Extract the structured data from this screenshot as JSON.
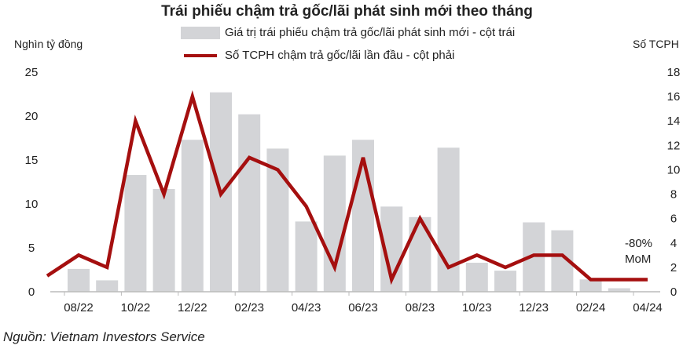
{
  "chart_data": {
    "type": "bar+line",
    "title": "Trái phiếu chậm trả gốc/lãi phát sinh mới theo tháng",
    "ylabel": "Nghìn tỷ đồng",
    "y2label": "Số TCPH",
    "ylim": [
      0,
      25
    ],
    "y2lim": [
      0,
      18
    ],
    "yticks": [
      0,
      5,
      10,
      15,
      20,
      25
    ],
    "y2ticks": [
      0,
      2,
      4,
      6,
      8,
      10,
      12,
      14,
      16,
      18
    ],
    "categories": [
      "08/22",
      "09/22",
      "10/22",
      "11/22",
      "12/22",
      "01/23",
      "02/23",
      "03/23",
      "04/23",
      "05/23",
      "06/23",
      "07/23",
      "08/23",
      "09/23",
      "10/23",
      "11/23",
      "12/23",
      "01/24",
      "02/24",
      "03/24",
      "04/24"
    ],
    "xtick_labels": [
      "08/22",
      "10/22",
      "12/22",
      "02/23",
      "04/23",
      "06/23",
      "08/23",
      "10/23",
      "12/23",
      "02/24",
      "04/24"
    ],
    "series": [
      {
        "name": "Giá trị trái phiếu chậm trả gốc/lãi phát sinh mới - cột trái",
        "type": "bar",
        "axis": "left",
        "color": "#d3d4d7",
        "values": [
          2.6,
          1.3,
          13.3,
          11.7,
          17.3,
          22.7,
          20.2,
          16.3,
          8.0,
          15.5,
          17.3,
          9.7,
          8.5,
          16.4,
          3.3,
          2.4,
          7.9,
          7.0,
          1.4,
          0.4,
          null
        ]
      },
      {
        "name": "Số TCPH chậm trả gốc/lãi lần đầu - cột phải",
        "type": "line",
        "axis": "right",
        "color": "#a50f0f",
        "values": [
          3,
          2,
          14,
          8,
          16,
          8,
          11,
          10,
          7,
          2,
          11,
          1,
          6,
          2,
          3,
          2,
          3,
          3,
          1,
          1,
          1
        ]
      }
    ],
    "annotations": [
      "-80%",
      "MoM"
    ],
    "grid": false,
    "legend": "top"
  },
  "source": "Nguồn: Vietnam Investors Service"
}
